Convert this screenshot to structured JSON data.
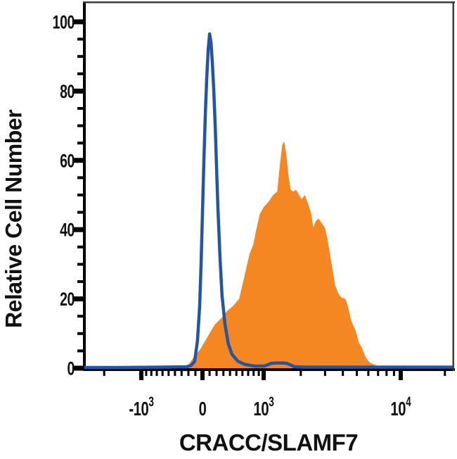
{
  "chart_data": {
    "type": "area",
    "title": "",
    "xlabel": "CRACC/SLAMF7",
    "ylabel": "Relative Cell Number",
    "legend": "none",
    "x_axis": {
      "scale": "biexponential",
      "range": [
        -2800,
        23000
      ],
      "major_ticks": [
        {
          "value": -1000,
          "base": "-10",
          "exp": "3"
        },
        {
          "value": 0,
          "base": "0",
          "exp": ""
        },
        {
          "value": 1000,
          "base": "10",
          "exp": "3"
        },
        {
          "value": 10000,
          "base": "10",
          "exp": "4"
        }
      ],
      "minor_ticks": [
        -2000,
        -900,
        -800,
        -700,
        -600,
        -500,
        -400,
        -300,
        -200,
        -100,
        100,
        200,
        300,
        400,
        500,
        600,
        700,
        800,
        900,
        2000,
        3000,
        4000,
        5000,
        6000,
        7000,
        8000,
        9000,
        20000
      ]
    },
    "y_axis": {
      "scale": "linear",
      "range": [
        0,
        105.7
      ],
      "major_ticks": [
        0,
        20,
        40,
        60,
        80,
        100
      ],
      "minor_ticks": [
        5,
        10,
        15,
        25,
        30,
        35,
        45,
        50,
        55,
        65,
        70,
        75,
        85,
        90,
        95
      ]
    },
    "series": [
      {
        "name": "orange-filled-histogram",
        "style": "filled-area",
        "color": "#f58722",
        "peak": {
          "x": 1490,
          "y": 65.5
        },
        "points": [
          [
            -260,
            0
          ],
          [
            -250,
            0.2
          ],
          [
            -200,
            1
          ],
          [
            -130,
            3
          ],
          [
            -30,
            5.5
          ],
          [
            70,
            9
          ],
          [
            170,
            12.5
          ],
          [
            270,
            14.5
          ],
          [
            355,
            16.5
          ],
          [
            450,
            18
          ],
          [
            545,
            20
          ],
          [
            600,
            24
          ],
          [
            660,
            28.5
          ],
          [
            725,
            33
          ],
          [
            790,
            35.5
          ],
          [
            850,
            40
          ],
          [
            920,
            44.5
          ],
          [
            1000,
            46.5
          ],
          [
            1105,
            48
          ],
          [
            1210,
            50
          ],
          [
            1310,
            51
          ],
          [
            1370,
            58
          ],
          [
            1440,
            64.5
          ],
          [
            1490,
            65.5
          ],
          [
            1545,
            62
          ],
          [
            1620,
            55
          ],
          [
            1680,
            51.5
          ],
          [
            1755,
            51
          ],
          [
            1840,
            51.5
          ],
          [
            1945,
            50
          ],
          [
            2030,
            48.8
          ],
          [
            2145,
            50
          ],
          [
            2265,
            47.5
          ],
          [
            2390,
            44.5
          ],
          [
            2470,
            40.5
          ],
          [
            2575,
            42.5
          ],
          [
            2690,
            43.2
          ],
          [
            2835,
            42
          ],
          [
            2990,
            40.5
          ],
          [
            3115,
            37.5
          ],
          [
            3250,
            33
          ],
          [
            3390,
            28.5
          ],
          [
            3530,
            24
          ],
          [
            3680,
            22
          ],
          [
            3800,
            21
          ],
          [
            3960,
            20.2
          ],
          [
            4080,
            20.3
          ],
          [
            4210,
            19.6
          ],
          [
            4390,
            17
          ],
          [
            4525,
            14.5
          ],
          [
            4665,
            12.8
          ],
          [
            4865,
            11.2
          ],
          [
            5015,
            9.4
          ],
          [
            5170,
            7.3
          ],
          [
            5390,
            6.1
          ],
          [
            5560,
            4.7
          ],
          [
            5730,
            3.3
          ],
          [
            5975,
            2.2
          ],
          [
            6160,
            1.6
          ],
          [
            6625,
            1
          ],
          [
            7050,
            0.6
          ],
          [
            7825,
            0.25
          ],
          [
            8865,
            0.1
          ],
          [
            10450,
            0
          ]
        ]
      },
      {
        "name": "blue-open-histogram",
        "style": "open-line",
        "color": "#2355a7",
        "peak": {
          "x": 100,
          "y": 96.5
        },
        "points": [
          [
            -2800,
            0.2
          ],
          [
            -1500,
            0.2
          ],
          [
            -600,
            0.3
          ],
          [
            -230,
            0.4
          ],
          [
            -160,
            0.8
          ],
          [
            -110,
            2
          ],
          [
            -70,
            8
          ],
          [
            -40,
            18
          ],
          [
            -20,
            30
          ],
          [
            0,
            45
          ],
          [
            20,
            60
          ],
          [
            40,
            73
          ],
          [
            60,
            84
          ],
          [
            80,
            92
          ],
          [
            100,
            96.5
          ],
          [
            120,
            94
          ],
          [
            140,
            88
          ],
          [
            160,
            80
          ],
          [
            180,
            70
          ],
          [
            200,
            58
          ],
          [
            220,
            46
          ],
          [
            250,
            32
          ],
          [
            280,
            21
          ],
          [
            325,
            12.5
          ],
          [
            375,
            7
          ],
          [
            430,
            4
          ],
          [
            525,
            2
          ],
          [
            640,
            1.1
          ],
          [
            815,
            0.6
          ],
          [
            1005,
            0.6
          ],
          [
            1090,
            1
          ],
          [
            1165,
            1.4
          ],
          [
            1285,
            1.5
          ],
          [
            1440,
            1.5
          ],
          [
            1565,
            1.4
          ],
          [
            1680,
            0.9
          ],
          [
            1800,
            0.4
          ],
          [
            2170,
            0.3
          ],
          [
            5000,
            0.3
          ],
          [
            12000,
            0.3
          ],
          [
            22500,
            0.3
          ]
        ]
      }
    ],
    "frame": {
      "axis_color": "#000000",
      "box_color": "#3d3d3d",
      "grid": "off"
    },
    "text_color": "#111111"
  }
}
